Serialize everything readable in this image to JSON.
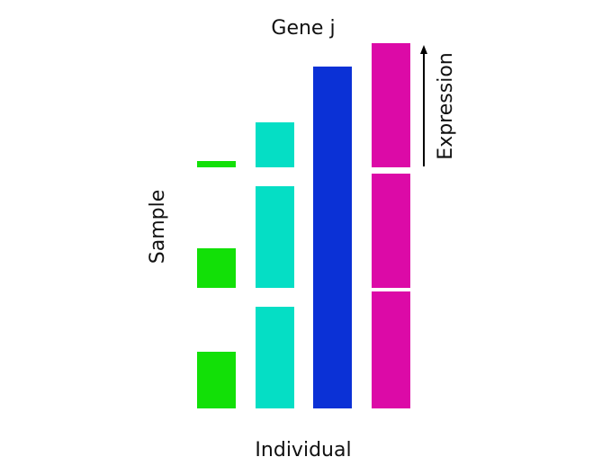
{
  "labels": {
    "title": "Gene j",
    "x_label": "Individual",
    "y_label": "Sample",
    "arrow_label": "Expression"
  },
  "colors": {
    "green": "#12e007",
    "cyan": "#05dec5",
    "blue": "#0b31d6",
    "magenta": "#dc0aa7",
    "arrow": "#000000"
  },
  "chart_data": {
    "type": "bar",
    "categories": [
      "",
      "",
      "",
      ""
    ],
    "series_colors": [
      "#12e007",
      "#05dec5",
      "#0b31d6",
      "#dc0aa7"
    ],
    "rows": [
      {
        "values": [
          0.05,
          0.36,
          0.81,
          1.0
        ]
      },
      {
        "values": [
          0.32,
          0.82,
          1.0,
          0.92
        ]
      },
      {
        "values": [
          0.46,
          0.82,
          1.0,
          0.94
        ]
      }
    ],
    "ylim": [
      0,
      1
    ],
    "grid": false,
    "legend": "none"
  }
}
